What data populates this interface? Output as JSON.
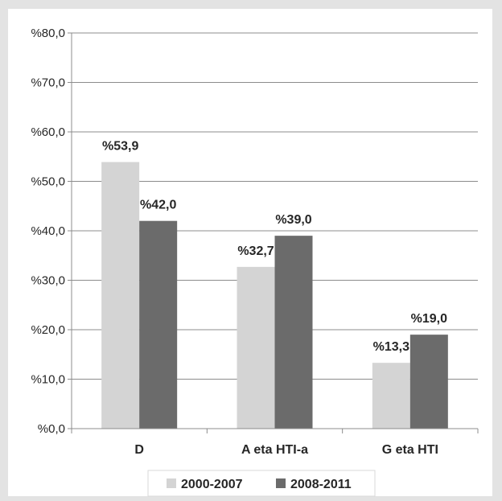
{
  "chart_data": {
    "type": "bar",
    "categories": [
      "D",
      "A eta HTI-a",
      "G eta HTI"
    ],
    "series": [
      {
        "name": "2000-2007",
        "values": [
          53.9,
          32.7,
          13.3
        ],
        "color": "#d4d4d4"
      },
      {
        "name": "2008-2011",
        "values": [
          42.0,
          39.0,
          19.0
        ],
        "color": "#6b6b6b"
      }
    ],
    "data_labels": [
      [
        "%53,9",
        "%32,7",
        "%13,3"
      ],
      [
        "%42,0",
        "%39,0",
        "%19,0"
      ]
    ],
    "y_ticks": [
      0,
      10,
      20,
      30,
      40,
      50,
      60,
      70,
      80
    ],
    "y_tick_labels": [
      "%0,0",
      "%10,0",
      "%20,0",
      "%30,0",
      "%40,0",
      "%50,0",
      "%60,0",
      "%70,0",
      "%80,0"
    ],
    "ylim": [
      0,
      80
    ],
    "grid": true,
    "legend_position": "bottom",
    "title": "",
    "xlabel": "",
    "ylabel": ""
  }
}
